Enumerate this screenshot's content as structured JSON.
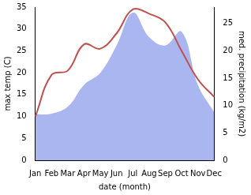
{
  "chart_data": {
    "type": "line",
    "xlabel": "date (month)",
    "ylabel": "max temp (C)",
    "y2label": "med. precipitation (kg/m2)",
    "categories": [
      "Jan",
      "Feb",
      "Mar",
      "Apr",
      "May",
      "Jun",
      "Jul",
      "Aug",
      "Sep",
      "Oct",
      "Nov",
      "Dec"
    ],
    "series": [
      {
        "type": "area",
        "axis": "y2",
        "color": "#aab6f0",
        "values": [
          8.4,
          8.5,
          9.8,
          13.8,
          16,
          21,
          27,
          22.5,
          21,
          23.5,
          13.8,
          8.8
        ]
      },
      {
        "type": "line",
        "color": "#c0504d",
        "values": [
          10,
          19.5,
          20.5,
          26.5,
          25.5,
          29,
          34.5,
          33.5,
          31.5,
          25,
          18.5,
          14.5
        ]
      }
    ],
    "ylim": [
      0,
      35
    ],
    "yticks": [
      0,
      5,
      10,
      15,
      20,
      25,
      30,
      35
    ],
    "y2lim": [
      0,
      28
    ],
    "y2ticks": [
      0,
      5,
      10,
      15,
      20,
      25
    ],
    "grid": false
  }
}
